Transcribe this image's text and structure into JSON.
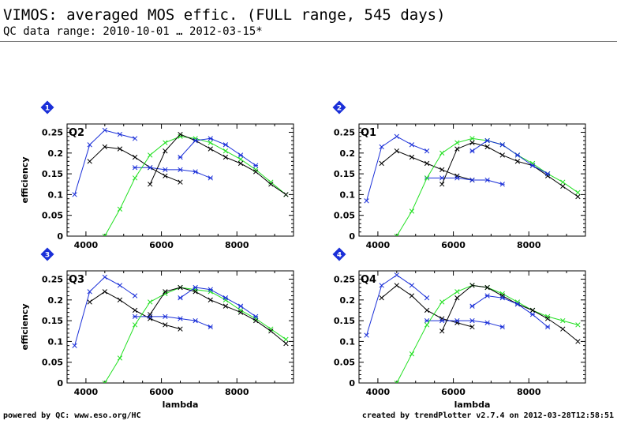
{
  "header": {
    "title": "VIMOS: averaged MOS effic. (FULL range, 545 days)",
    "subtitle": "QC data range: 2010-10-01 … 2012-03-15*"
  },
  "footer": {
    "left": "powered by QC: www.eso.org/HC",
    "right": "created by trendPlotter v2.7.4 on 2012-03-28T12:58:51"
  },
  "colors": {
    "blue": "#1a2fd8",
    "green": "#22e022",
    "black": "#000000",
    "badge": "#1a2fd8"
  },
  "chart_data": [
    {
      "type": "line",
      "badge": "1",
      "label": "Q2",
      "xlabel": "",
      "ylabel": "efficiency",
      "xlim": [
        3500,
        9500
      ],
      "ylim": [
        0,
        0.27
      ],
      "xticks": [
        "4000",
        "6000",
        "8000"
      ],
      "yticks": [
        "0",
        "0.05",
        "0.1",
        "0.15",
        "0.2",
        "0.25"
      ],
      "series": [
        {
          "color": "blue",
          "marker": "plus",
          "x": [
            3700,
            4100,
            4500,
            4900,
            5300
          ],
          "y": [
            0.1,
            0.22,
            0.255,
            0.245,
            0.235
          ]
        },
        {
          "color": "black",
          "marker": "plus",
          "x": [
            4100,
            4500,
            4900,
            5300,
            5700,
            6100,
            6500
          ],
          "y": [
            0.18,
            0.215,
            0.21,
            0.19,
            0.165,
            0.145,
            0.13
          ]
        },
        {
          "color": "blue",
          "marker": "star",
          "x": [
            5300,
            5700,
            6100,
            6500,
            6900,
            7300
          ],
          "y": [
            0.165,
            0.165,
            0.16,
            0.16,
            0.155,
            0.14
          ]
        },
        {
          "color": "green",
          "marker": "plus",
          "x": [
            4500,
            4900,
            5300,
            5700,
            6100,
            6500,
            6900,
            7300,
            7700,
            8100,
            8500,
            8900,
            9300
          ],
          "y": [
            0.0,
            0.065,
            0.14,
            0.195,
            0.225,
            0.24,
            0.235,
            0.225,
            0.205,
            0.185,
            0.16,
            0.13,
            0.1
          ]
        },
        {
          "color": "black",
          "marker": "plus",
          "x": [
            5700,
            6100,
            6500,
            6900,
            7300,
            7700,
            8100,
            8500,
            8900,
            9300
          ],
          "y": [
            0.125,
            0.205,
            0.245,
            0.23,
            0.21,
            0.19,
            0.175,
            0.155,
            0.125,
            0.1
          ]
        },
        {
          "color": "blue",
          "marker": "star",
          "x": [
            6500,
            6900,
            7300,
            7700,
            8100,
            8500
          ],
          "y": [
            0.19,
            0.23,
            0.235,
            0.22,
            0.195,
            0.17
          ]
        }
      ]
    },
    {
      "type": "line",
      "badge": "2",
      "label": "Q1",
      "xlabel": "",
      "ylabel": "",
      "xlim": [
        3500,
        9500
      ],
      "ylim": [
        0,
        0.27
      ],
      "xticks": [
        "4000",
        "6000",
        "8000"
      ],
      "yticks": [
        "0",
        "0.05",
        "0.1",
        "0.15",
        "0.2",
        "0.25"
      ],
      "series": [
        {
          "color": "blue",
          "marker": "plus",
          "x": [
            3700,
            4100,
            4500,
            4900,
            5300
          ],
          "y": [
            0.085,
            0.215,
            0.24,
            0.22,
            0.205
          ]
        },
        {
          "color": "black",
          "marker": "plus",
          "x": [
            4100,
            4500,
            4900,
            5300,
            5700,
            6100,
            6500
          ],
          "y": [
            0.175,
            0.205,
            0.19,
            0.175,
            0.16,
            0.145,
            0.135
          ]
        },
        {
          "color": "blue",
          "marker": "star",
          "x": [
            5300,
            5700,
            6100,
            6500,
            6900,
            7300
          ],
          "y": [
            0.14,
            0.14,
            0.14,
            0.135,
            0.135,
            0.125
          ]
        },
        {
          "color": "green",
          "marker": "plus",
          "x": [
            4500,
            4900,
            5300,
            5700,
            6100,
            6500,
            6900,
            7300,
            7700,
            8100,
            8500,
            8900,
            9300
          ],
          "y": [
            0.0,
            0.06,
            0.14,
            0.2,
            0.225,
            0.235,
            0.23,
            0.22,
            0.195,
            0.175,
            0.15,
            0.13,
            0.105
          ]
        },
        {
          "color": "black",
          "marker": "plus",
          "x": [
            5700,
            6100,
            6500,
            6900,
            7300,
            7700,
            8100,
            8500,
            8900,
            9300
          ],
          "y": [
            0.125,
            0.21,
            0.225,
            0.215,
            0.195,
            0.18,
            0.17,
            0.145,
            0.12,
            0.095
          ]
        },
        {
          "color": "blue",
          "marker": "star",
          "x": [
            6500,
            6900,
            7300,
            7700,
            8100,
            8500
          ],
          "y": [
            0.205,
            0.23,
            0.22,
            0.195,
            0.17,
            0.15
          ]
        }
      ]
    },
    {
      "type": "line",
      "badge": "3",
      "label": "Q3",
      "xlabel": "lambda",
      "ylabel": "efficiency",
      "xlim": [
        3500,
        9500
      ],
      "ylim": [
        0,
        0.27
      ],
      "xticks": [
        "4000",
        "6000",
        "8000"
      ],
      "yticks": [
        "0",
        "0.05",
        "0.1",
        "0.15",
        "0.2",
        "0.25"
      ],
      "series": [
        {
          "color": "blue",
          "marker": "plus",
          "x": [
            3700,
            4100,
            4500,
            4900,
            5300
          ],
          "y": [
            0.09,
            0.22,
            0.255,
            0.235,
            0.21
          ]
        },
        {
          "color": "black",
          "marker": "plus",
          "x": [
            4100,
            4500,
            4900,
            5300,
            5700,
            6100,
            6500
          ],
          "y": [
            0.195,
            0.22,
            0.2,
            0.175,
            0.155,
            0.14,
            0.13
          ]
        },
        {
          "color": "blue",
          "marker": "star",
          "x": [
            5300,
            5700,
            6100,
            6500,
            6900,
            7300
          ],
          "y": [
            0.16,
            0.16,
            0.16,
            0.155,
            0.15,
            0.135
          ]
        },
        {
          "color": "green",
          "marker": "plus",
          "x": [
            4500,
            4900,
            5300,
            5700,
            6100,
            6500,
            6900,
            7300,
            7700,
            8100,
            8500,
            8900,
            9300
          ],
          "y": [
            0.0,
            0.06,
            0.14,
            0.195,
            0.215,
            0.23,
            0.225,
            0.22,
            0.2,
            0.175,
            0.155,
            0.13,
            0.105
          ]
        },
        {
          "color": "black",
          "marker": "plus",
          "x": [
            5700,
            6100,
            6500,
            6900,
            7300,
            7700,
            8100,
            8500,
            8900,
            9300
          ],
          "y": [
            0.165,
            0.22,
            0.23,
            0.22,
            0.2,
            0.185,
            0.17,
            0.15,
            0.125,
            0.095
          ]
        },
        {
          "color": "blue",
          "marker": "star",
          "x": [
            6500,
            6900,
            7300,
            7700,
            8100,
            8500
          ],
          "y": [
            0.205,
            0.23,
            0.225,
            0.205,
            0.185,
            0.16
          ]
        }
      ]
    },
    {
      "type": "line",
      "badge": "4",
      "label": "Q4",
      "xlabel": "lambda",
      "ylabel": "",
      "xlim": [
        3500,
        9500
      ],
      "ylim": [
        0,
        0.27
      ],
      "xticks": [
        "4000",
        "6000",
        "8000"
      ],
      "yticks": [
        "0",
        "0.05",
        "0.1",
        "0.15",
        "0.2",
        "0.25"
      ],
      "series": [
        {
          "color": "blue",
          "marker": "plus",
          "x": [
            3700,
            4100,
            4500,
            4900,
            5300
          ],
          "y": [
            0.115,
            0.235,
            0.26,
            0.235,
            0.205
          ]
        },
        {
          "color": "black",
          "marker": "plus",
          "x": [
            4100,
            4500,
            4900,
            5300,
            5700,
            6100,
            6500
          ],
          "y": [
            0.205,
            0.235,
            0.21,
            0.175,
            0.155,
            0.145,
            0.135
          ]
        },
        {
          "color": "blue",
          "marker": "star",
          "x": [
            5300,
            5700,
            6100,
            6500,
            6900,
            7300
          ],
          "y": [
            0.15,
            0.15,
            0.15,
            0.15,
            0.145,
            0.135
          ]
        },
        {
          "color": "green",
          "marker": "plus",
          "x": [
            4500,
            4900,
            5300,
            5700,
            6100,
            6500,
            6900,
            7300,
            7700,
            8100,
            8500,
            8900,
            9300
          ],
          "y": [
            0.0,
            0.07,
            0.14,
            0.195,
            0.22,
            0.235,
            0.23,
            0.215,
            0.195,
            0.175,
            0.16,
            0.15,
            0.14
          ]
        },
        {
          "color": "black",
          "marker": "plus",
          "x": [
            5700,
            6100,
            6500,
            6900,
            7300,
            7700,
            8100,
            8500,
            8900,
            9300
          ],
          "y": [
            0.125,
            0.205,
            0.235,
            0.23,
            0.21,
            0.19,
            0.175,
            0.155,
            0.13,
            0.1
          ]
        },
        {
          "color": "blue",
          "marker": "star",
          "x": [
            6500,
            6900,
            7300,
            7700,
            8100,
            8500
          ],
          "y": [
            0.185,
            0.21,
            0.205,
            0.19,
            0.165,
            0.135
          ]
        }
      ]
    }
  ]
}
